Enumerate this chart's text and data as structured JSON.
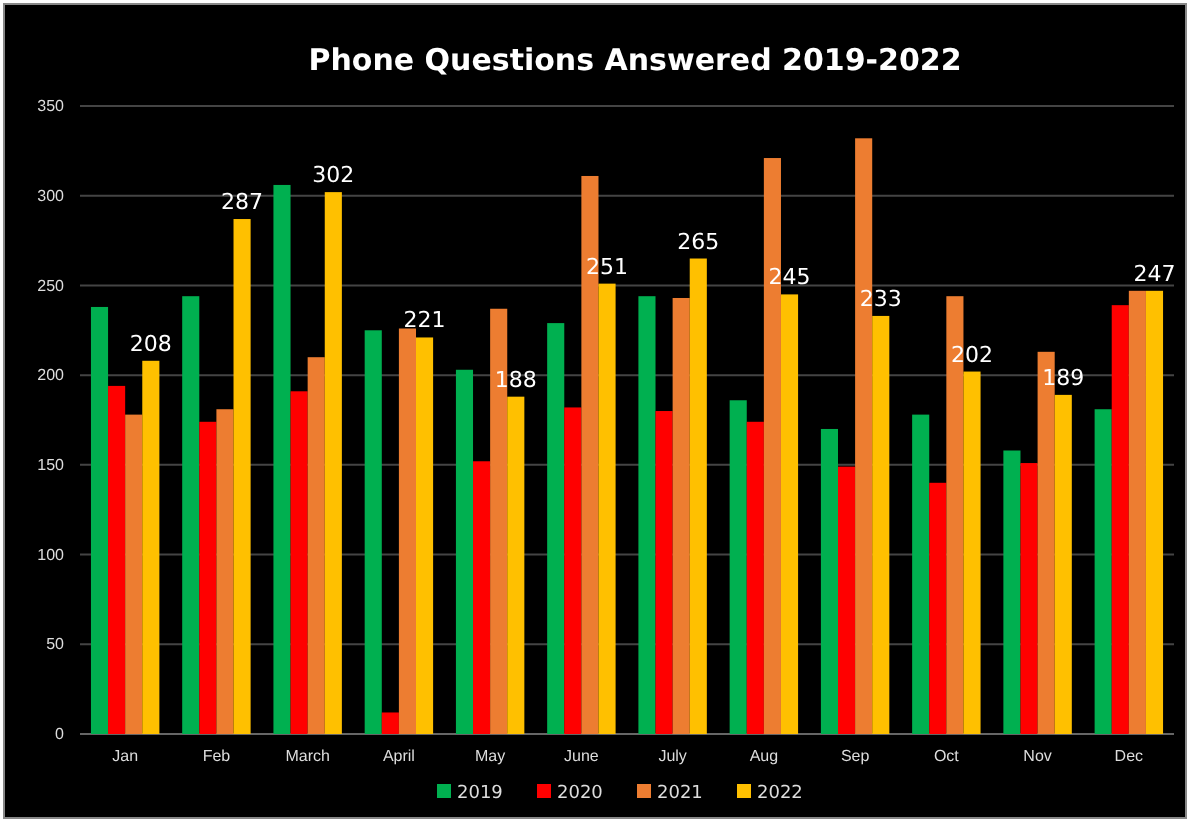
{
  "chart_data": {
    "type": "bar",
    "title": "Phone Questions Answered 2019-2022",
    "categories": [
      "Jan",
      "Feb",
      "March",
      "April",
      "May",
      "June",
      "July",
      "Aug",
      "Sep",
      "Oct",
      "Nov",
      "Dec"
    ],
    "series": [
      {
        "name": "2019",
        "color": "#00b050",
        "values": [
          238,
          244,
          306,
          225,
          203,
          229,
          244,
          186,
          170,
          178,
          158,
          181
        ]
      },
      {
        "name": "2020",
        "color": "#ff0000",
        "values": [
          194,
          174,
          191,
          12,
          152,
          182,
          180,
          174,
          149,
          140,
          151,
          239
        ]
      },
      {
        "name": "2021",
        "color": "#ed7d31",
        "values": [
          178,
          181,
          210,
          226,
          237,
          311,
          243,
          321,
          332,
          244,
          213,
          247
        ]
      },
      {
        "name": "2022",
        "color": "#ffc000",
        "values": [
          208,
          287,
          302,
          221,
          188,
          251,
          265,
          245,
          233,
          202,
          189,
          247
        ],
        "value_labels": [
          "208",
          "287",
          "302",
          "221",
          "188",
          "251",
          "265",
          "245",
          "233",
          "202",
          "189",
          "247"
        ]
      }
    ],
    "ylim": [
      0,
      350
    ],
    "yticks": [
      0,
      50,
      100,
      150,
      200,
      250,
      300,
      350
    ],
    "grid": "y",
    "legend": "bottom"
  }
}
